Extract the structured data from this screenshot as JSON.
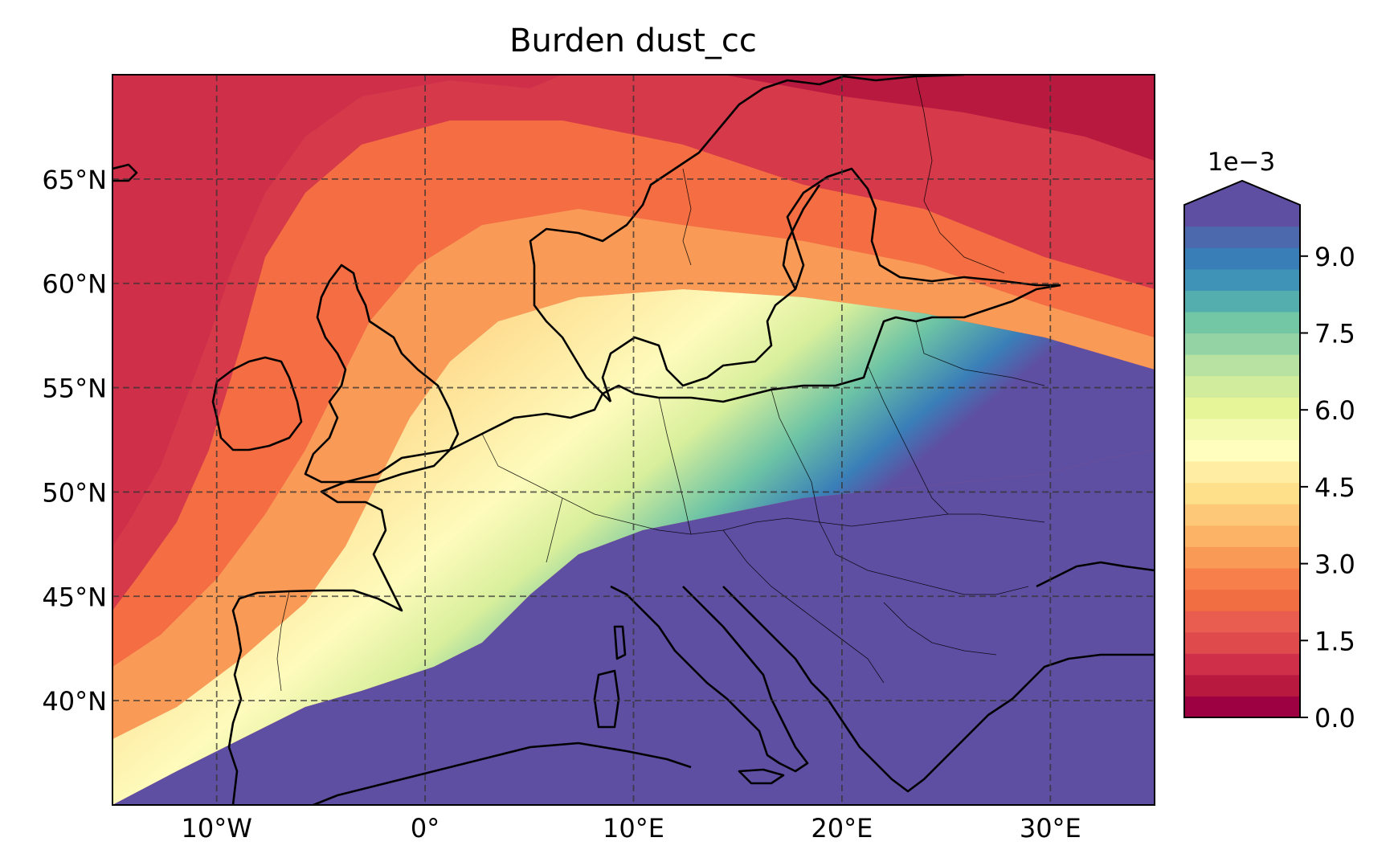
{
  "title": "Burden dust_cc",
  "map": {
    "lon_range": [
      -15,
      35
    ],
    "lat_range": [
      35,
      70
    ],
    "lon_ticks": [
      {
        "value": -10,
        "label": "10°W"
      },
      {
        "value": 0,
        "label": "0°"
      },
      {
        "value": 10,
        "label": "10°E"
      },
      {
        "value": 20,
        "label": "20°E"
      },
      {
        "value": 30,
        "label": "30°E"
      }
    ],
    "lat_ticks": [
      {
        "value": 40,
        "label": "40°N"
      },
      {
        "value": 45,
        "label": "45°N"
      },
      {
        "value": 50,
        "label": "50°N"
      },
      {
        "value": 55,
        "label": "55°N"
      },
      {
        "value": 60,
        "label": "60°N"
      },
      {
        "value": 65,
        "label": "65°N"
      }
    ],
    "gridlines": "dashed"
  },
  "colorbar": {
    "scale_label": "1e−3",
    "min": 0.0,
    "max": 10.0,
    "extend": "max",
    "ticks": [
      {
        "value": 0.0,
        "label": "0.0"
      },
      {
        "value": 1.5,
        "label": "1.5"
      },
      {
        "value": 3.0,
        "label": "3.0"
      },
      {
        "value": 4.5,
        "label": "4.5"
      },
      {
        "value": 6.0,
        "label": "6.0"
      },
      {
        "value": 7.5,
        "label": "7.5"
      },
      {
        "value": 9.0,
        "label": "9.0"
      }
    ],
    "colors": [
      "#9e0142",
      "#b8193f",
      "#cf2f49",
      "#df4a4d",
      "#e85d4f",
      "#f16e43",
      "#f67f4b",
      "#f99a56",
      "#fcb365",
      "#fdc877",
      "#fee08b",
      "#feeda2",
      "#fffebe",
      "#f4fab0",
      "#e6f598",
      "#d0ec9c",
      "#b7e2a1",
      "#94d4a4",
      "#73c7a4",
      "#54aead",
      "#3e93b7",
      "#3a7eb8",
      "#4d69ad",
      "#5e4fa2"
    ],
    "over_color": "#5e4fa2"
  }
}
